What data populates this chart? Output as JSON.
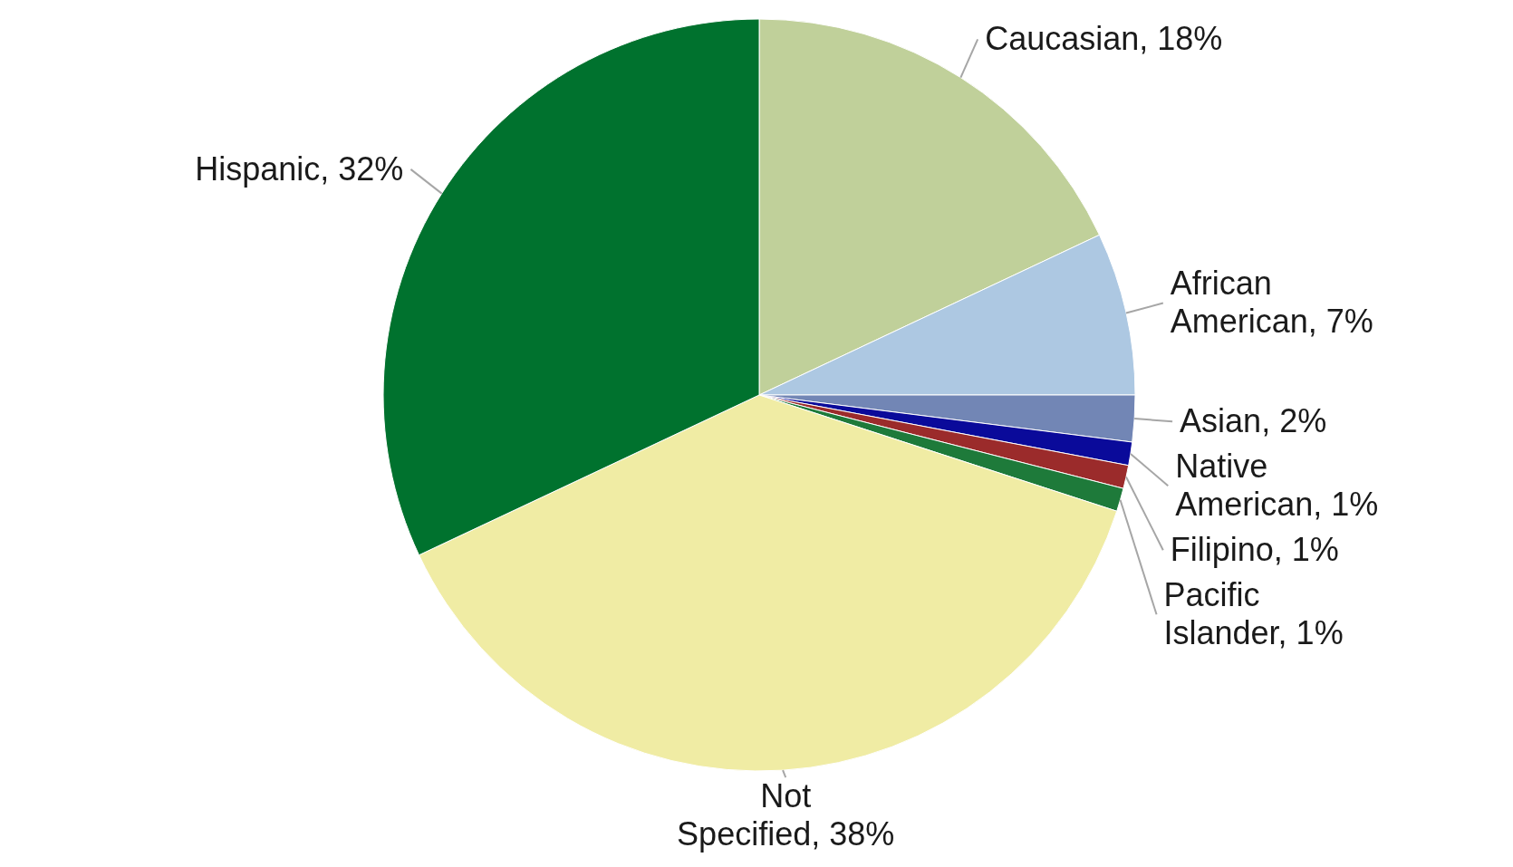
{
  "chart_data": {
    "type": "pie",
    "categories": [
      "Caucasian",
      "African American",
      "Asian",
      "Native American",
      "Filipino",
      "Pacific Islander",
      "Not Specified",
      "Hispanic"
    ],
    "values": [
      18,
      7,
      2,
      1,
      1,
      1,
      38,
      32
    ],
    "value_labels": [
      "18%",
      "7%",
      "2%",
      "1%",
      "1%",
      "1%",
      "38%",
      "32%"
    ],
    "colors": [
      "#c0d09a",
      "#adc8e2",
      "#7286b5",
      "#0a0a9a",
      "#9b2b2b",
      "#1e7a3a",
      "#f0eca4",
      "#00722e"
    ]
  }
}
